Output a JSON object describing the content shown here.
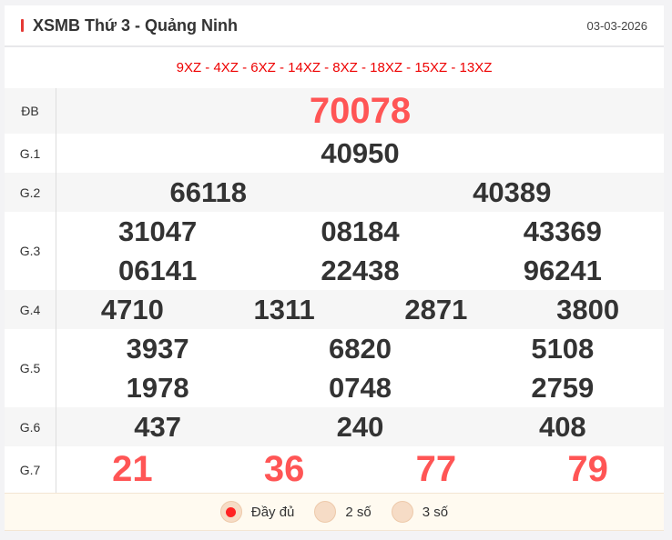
{
  "header": {
    "title": "XSMB Thứ 3 - Quảng Ninh",
    "date": "03-03-2026"
  },
  "codes": "9XZ - 4XZ - 6XZ - 14XZ - 8XZ - 18XZ - 15XZ - 13XZ",
  "prizes": [
    {
      "label": "ĐB",
      "numbers": [
        "70078"
      ],
      "cols": 1,
      "red": true,
      "big": true
    },
    {
      "label": "G.1",
      "numbers": [
        "40950"
      ],
      "cols": 1
    },
    {
      "label": "G.2",
      "numbers": [
        "66118",
        "40389"
      ],
      "cols": 2
    },
    {
      "label": "G.3",
      "numbers": [
        "31047",
        "08184",
        "43369",
        "06141",
        "22438",
        "96241"
      ],
      "cols": 3
    },
    {
      "label": "G.4",
      "numbers": [
        "4710",
        "1311",
        "2871",
        "3800"
      ],
      "cols": 4
    },
    {
      "label": "G.5",
      "numbers": [
        "3937",
        "6820",
        "5108",
        "1978",
        "0748",
        "2759"
      ],
      "cols": 3
    },
    {
      "label": "G.6",
      "numbers": [
        "437",
        "240",
        "408"
      ],
      "cols": 3
    },
    {
      "label": "G.7",
      "numbers": [
        "21",
        "36",
        "77",
        "79"
      ],
      "cols": 4,
      "red": true,
      "big": true
    }
  ],
  "options": [
    {
      "label": "Đầy đủ",
      "selected": true
    },
    {
      "label": "2 số",
      "selected": false
    },
    {
      "label": "3 số",
      "selected": false
    }
  ],
  "colors": {
    "accent": "#e53935",
    "highlight": "#ff5555"
  }
}
